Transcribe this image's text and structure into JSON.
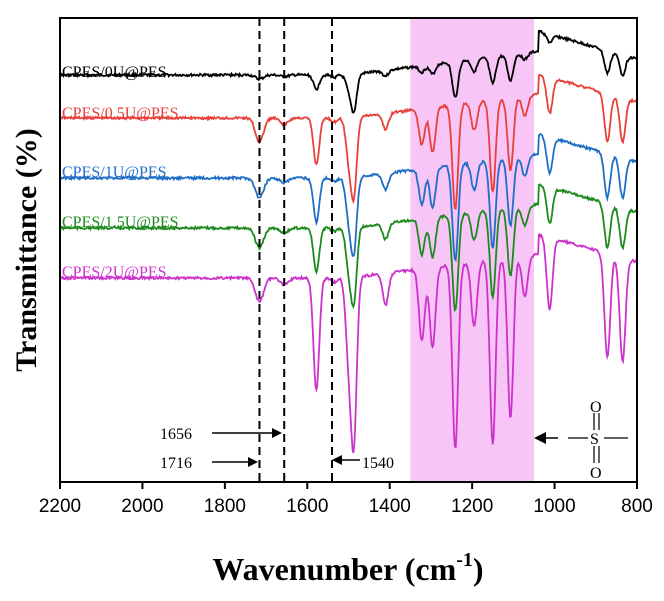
{
  "chart_data": {
    "type": "line",
    "title": "",
    "xlabel": "Wavenumber",
    "xlabel_unit_base": "cm",
    "xlabel_unit_exp": "-1",
    "ylabel": "Transmittance (%)",
    "xlim": [
      2200,
      800
    ],
    "x_ticks": [
      2200,
      2000,
      1800,
      1600,
      1400,
      1200,
      1000,
      800
    ],
    "shaded_region": {
      "x_from": 1350,
      "x_to": 1050,
      "color": "#f7c6f7"
    },
    "reference_lines": [
      {
        "x": 1716,
        "label": "1716"
      },
      {
        "x": 1656,
        "label": "1656"
      },
      {
        "x": 1540,
        "label": "1540"
      }
    ],
    "sulfone_symbol": {
      "top": "O",
      "center": "S",
      "bottom": "O"
    },
    "series": [
      {
        "name": "CPES/0U@PES",
        "color": "#000000",
        "baseline": 0,
        "peaks": [
          [
            1716,
            0.05
          ],
          [
            1656,
            0.02
          ],
          [
            1578,
            0.18
          ],
          [
            1535,
            0.03
          ],
          [
            1500,
            0.15
          ],
          [
            1487,
            0.45
          ],
          [
            1410,
            0.07
          ],
          [
            1322,
            0.08
          ],
          [
            1296,
            0.12
          ],
          [
            1241,
            0.45
          ],
          [
            1195,
            0.15
          ],
          [
            1150,
            0.33
          ],
          [
            1107,
            0.32
          ],
          [
            1072,
            0.08
          ],
          [
            1012,
            0.1
          ],
          [
            872,
            0.28
          ],
          [
            835,
            0.25
          ]
        ],
        "sparse": true
      },
      {
        "name": "CPES/0.5U@PES",
        "color": "#e8413c",
        "baseline": 1,
        "peaks": [
          [
            1716,
            0.3
          ],
          [
            1656,
            0.08
          ],
          [
            1578,
            0.58
          ],
          [
            1535,
            0.05
          ],
          [
            1500,
            0.45
          ],
          [
            1487,
            0.95
          ],
          [
            1410,
            0.2
          ],
          [
            1322,
            0.45
          ],
          [
            1296,
            0.55
          ],
          [
            1241,
            1.3
          ],
          [
            1195,
            0.35
          ],
          [
            1150,
            1.15
          ],
          [
            1107,
            0.9
          ],
          [
            1072,
            0.25
          ],
          [
            1012,
            0.45
          ],
          [
            872,
            0.6
          ],
          [
            835,
            0.55
          ]
        ]
      },
      {
        "name": "CPES/1U@PES",
        "color": "#1f6fc6",
        "baseline": 2,
        "peaks": [
          [
            1716,
            0.25
          ],
          [
            1656,
            0.06
          ],
          [
            1578,
            0.55
          ],
          [
            1535,
            0.04
          ],
          [
            1500,
            0.45
          ],
          [
            1487,
            0.9
          ],
          [
            1410,
            0.2
          ],
          [
            1322,
            0.45
          ],
          [
            1296,
            0.5
          ],
          [
            1241,
            1.2
          ],
          [
            1195,
            0.35
          ],
          [
            1150,
            1.1
          ],
          [
            1107,
            0.85
          ],
          [
            1072,
            0.25
          ],
          [
            1012,
            0.45
          ],
          [
            872,
            0.55
          ],
          [
            835,
            0.5
          ]
        ]
      },
      {
        "name": "CPES/1.5U@PES",
        "color": "#1e8a1e",
        "baseline": 3,
        "peaks": [
          [
            1716,
            0.25
          ],
          [
            1656,
            0.06
          ],
          [
            1578,
            0.55
          ],
          [
            1535,
            0.04
          ],
          [
            1500,
            0.45
          ],
          [
            1487,
            0.9
          ],
          [
            1410,
            0.2
          ],
          [
            1322,
            0.45
          ],
          [
            1296,
            0.5
          ],
          [
            1241,
            1.2
          ],
          [
            1195,
            0.35
          ],
          [
            1150,
            1.1
          ],
          [
            1107,
            0.85
          ],
          [
            1072,
            0.25
          ],
          [
            1012,
            0.45
          ],
          [
            872,
            0.55
          ],
          [
            835,
            0.5
          ]
        ]
      },
      {
        "name": "CPES/2U@PES",
        "color": "#cc33cc",
        "baseline": 4,
        "peaks": [
          [
            1716,
            0.3
          ],
          [
            1656,
            0.08
          ],
          [
            1578,
            1.4
          ],
          [
            1535,
            0.05
          ],
          [
            1500,
            0.9
          ],
          [
            1487,
            2.0
          ],
          [
            1410,
            0.4
          ],
          [
            1322,
            0.9
          ],
          [
            1296,
            1.0
          ],
          [
            1241,
            2.3
          ],
          [
            1195,
            0.8
          ],
          [
            1150,
            2.3
          ],
          [
            1107,
            2.0
          ],
          [
            1072,
            0.5
          ],
          [
            1012,
            0.9
          ],
          [
            872,
            1.3
          ],
          [
            835,
            1.3
          ]
        ]
      }
    ]
  }
}
